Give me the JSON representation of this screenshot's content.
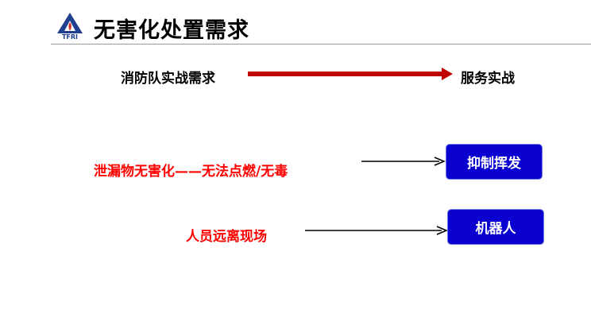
{
  "header": {
    "logo_text": "TFRI",
    "title": "无害化处置需求"
  },
  "row1": {
    "left": "消防队实战需求",
    "right": "服务实战",
    "arrow_color": "#c00000"
  },
  "row2": {
    "left": "泄漏物无害化——无法点燃/无毒",
    "button": "抑制挥发"
  },
  "row3": {
    "left": "人员远离现场",
    "button": "机器人"
  },
  "colors": {
    "red_text": "#ff0000",
    "button": "#0a00d0"
  }
}
